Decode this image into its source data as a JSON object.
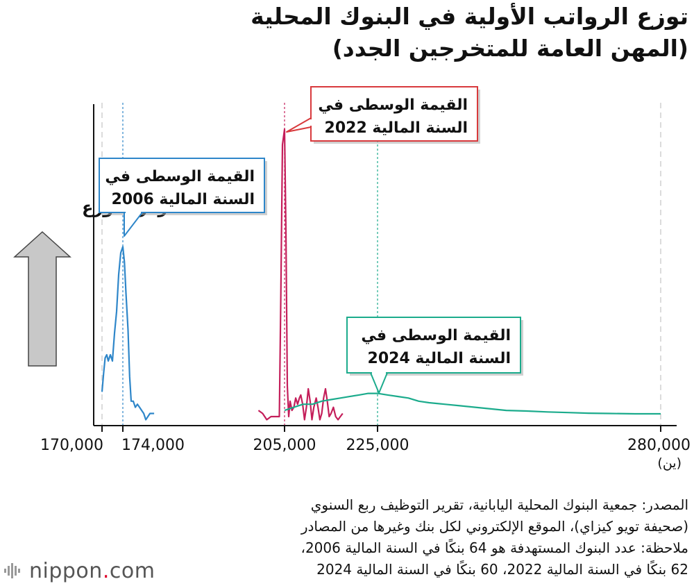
{
  "title": {
    "line1": "توزع الرواتب الأولية في البنوك المحلية",
    "line2": "(المهن العامة للمتخرجين الجدد)"
  },
  "y_axis_label": "تركز التوزع",
  "unit_label": "(ين)",
  "colors": {
    "fy2006": "#2e86c9",
    "fy2022": "#c41e5a",
    "fy2024": "#1bab8c",
    "callout2022_border": "#d8393c",
    "arrow_fill": "#c8c8c8"
  },
  "chart_data": {
    "type": "line",
    "x_ticks": [
      170000,
      174000,
      205000,
      225000,
      280000
    ],
    "x_tick_labels": [
      "170,000",
      "174,000",
      "205,000",
      "225,000",
      "280,000"
    ],
    "xlim": [
      170000,
      280000
    ],
    "ylim": [
      0,
      1
    ],
    "series": [
      {
        "key": "fy2006",
        "points": [
          [
            170000,
            0.08
          ],
          [
            170300,
            0.14
          ],
          [
            170600,
            0.19
          ],
          [
            170900,
            0.2
          ],
          [
            171200,
            0.18
          ],
          [
            171600,
            0.2
          ],
          [
            172000,
            0.18
          ],
          [
            172400,
            0.27
          ],
          [
            172800,
            0.34
          ],
          [
            173200,
            0.46
          ],
          [
            173600,
            0.53
          ],
          [
            174000,
            0.55
          ],
          [
            174300,
            0.5
          ],
          [
            174600,
            0.4
          ],
          [
            175000,
            0.28
          ],
          [
            175300,
            0.13
          ],
          [
            175600,
            0.05
          ],
          [
            176000,
            0.05
          ],
          [
            176400,
            0.03
          ],
          [
            176800,
            0.04
          ],
          [
            177200,
            0.03
          ],
          [
            177600,
            0.02
          ],
          [
            178000,
            0.01
          ],
          [
            178400,
            -0.01
          ],
          [
            178800,
            0.0
          ],
          [
            179200,
            0.01
          ],
          [
            179600,
            0.01
          ],
          [
            180000,
            0.01
          ]
        ]
      },
      {
        "key": "fy2022",
        "points": [
          [
            200000,
            0.02
          ],
          [
            200800,
            0.01
          ],
          [
            201600,
            -0.01
          ],
          [
            202400,
            0.0
          ],
          [
            203200,
            0.0
          ],
          [
            204000,
            0.0
          ],
          [
            204300,
            0.4
          ],
          [
            204600,
            0.88
          ],
          [
            205000,
            0.93
          ],
          [
            205300,
            0.6
          ],
          [
            205600,
            0.1
          ],
          [
            205900,
            0.0
          ],
          [
            206200,
            0.05
          ],
          [
            206600,
            0.02
          ],
          [
            207000,
            0.03
          ],
          [
            207400,
            0.06
          ],
          [
            207800,
            0.04
          ],
          [
            208200,
            0.06
          ],
          [
            208500,
            0.07
          ],
          [
            208900,
            0.04
          ],
          [
            209300,
            -0.01
          ],
          [
            209700,
            0.03
          ],
          [
            210100,
            0.09
          ],
          [
            210500,
            0.05
          ],
          [
            210900,
            -0.01
          ],
          [
            211300,
            0.03
          ],
          [
            211800,
            0.06
          ],
          [
            212200,
            0.03
          ],
          [
            212600,
            -0.01
          ],
          [
            213000,
            0.01
          ],
          [
            213400,
            0.06
          ],
          [
            213800,
            0.09
          ],
          [
            214200,
            0.05
          ],
          [
            214600,
            0.0
          ],
          [
            215000,
            0.01
          ],
          [
            215500,
            0.03
          ],
          [
            216000,
            0.0
          ],
          [
            216500,
            -0.01
          ],
          [
            217000,
            0.0
          ],
          [
            217500,
            0.01
          ]
        ]
      },
      {
        "key": "fy2024",
        "points": [
          [
            205000,
            0.02
          ],
          [
            207000,
            0.03
          ],
          [
            209000,
            0.04
          ],
          [
            211000,
            0.04
          ],
          [
            213000,
            0.05
          ],
          [
            215000,
            0.055
          ],
          [
            217000,
            0.06
          ],
          [
            219000,
            0.065
          ],
          [
            221000,
            0.07
          ],
          [
            223000,
            0.075
          ],
          [
            225000,
            0.075
          ],
          [
            227000,
            0.07
          ],
          [
            229000,
            0.065
          ],
          [
            231000,
            0.06
          ],
          [
            233000,
            0.05
          ],
          [
            235000,
            0.045
          ],
          [
            238000,
            0.04
          ],
          [
            241000,
            0.035
          ],
          [
            244000,
            0.03
          ],
          [
            247000,
            0.025
          ],
          [
            250000,
            0.02
          ],
          [
            254000,
            0.018
          ],
          [
            258000,
            0.015
          ],
          [
            262000,
            0.013
          ],
          [
            266000,
            0.011
          ],
          [
            270000,
            0.01
          ],
          [
            275000,
            0.009
          ],
          [
            280000,
            0.009
          ]
        ]
      }
    ],
    "medians": [
      {
        "key": "fy2006",
        "x": 174000
      },
      {
        "key": "fy2022",
        "x": 205000
      },
      {
        "key": "fy2024",
        "x": 225000
      }
    ],
    "reference_lines": [
      170000,
      280000
    ],
    "annotations": [
      {
        "key": "fy2006",
        "line1": "القيمة الوسطى في",
        "line2": "السنة المالية 2006"
      },
      {
        "key": "fy2022",
        "line1": "القيمة الوسطى في",
        "line2": "السنة المالية 2022"
      },
      {
        "key": "fy2024",
        "line1": "القيمة الوسطى في",
        "line2": "السنة المالية 2024"
      }
    ]
  },
  "footnote": {
    "source_line1": "المصدر: جمعية البنوك المحلية اليابانية، تقرير التوظيف ربع السنوي",
    "source_line2": "(صحيفة تويو كيزاي)، الموقع الإلكتروني لكل بنك وغيرها من المصادر",
    "note_line1": "ملاحظة: عدد البنوك المستهدفة هو 64 بنكًا في السنة المالية 2006،",
    "note_line2": "62 بنكًا في السنة المالية 2022، 60 بنكًا في السنة المالية 2024"
  },
  "logo": {
    "brand": "nippon",
    "dot": ".",
    "suffix": "com"
  }
}
